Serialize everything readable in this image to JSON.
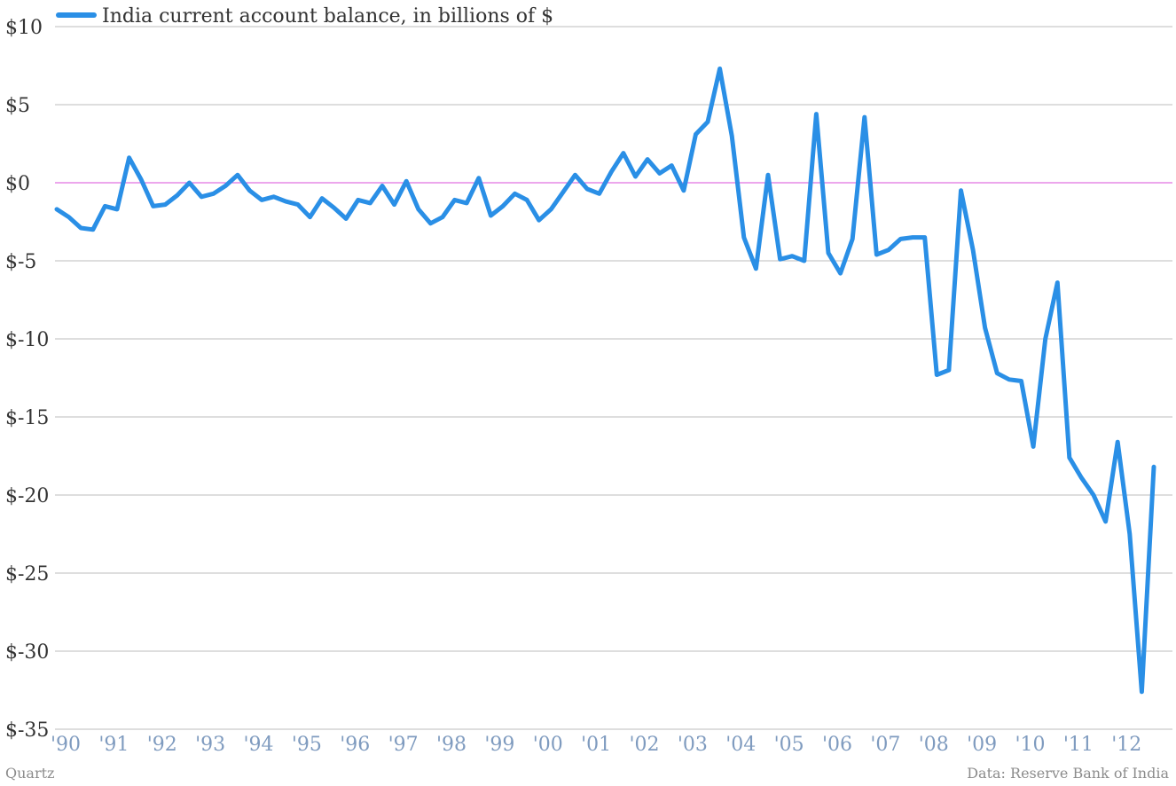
{
  "chart_data": {
    "type": "line",
    "series": [
      {
        "name": "India current account balance, in billions of $",
        "color": "#2a8fe6",
        "values": [
          -1.7,
          -2.2,
          -2.9,
          -3.0,
          -1.5,
          -1.7,
          1.6,
          0.2,
          -1.5,
          -1.4,
          -0.8,
          0.0,
          -0.9,
          -0.7,
          -0.2,
          0.5,
          -0.5,
          -1.1,
          -0.9,
          -1.2,
          -1.4,
          -2.2,
          -1.0,
          -1.6,
          -2.3,
          -1.1,
          -1.3,
          -0.2,
          -1.4,
          0.1,
          -1.7,
          -2.6,
          -2.2,
          -1.1,
          -1.3,
          0.3,
          -2.1,
          -1.5,
          -0.7,
          -1.1,
          -2.4,
          -1.7,
          -0.6,
          0.5,
          -0.4,
          -0.7,
          0.7,
          1.9,
          0.4,
          1.5,
          0.6,
          1.1,
          -0.5,
          3.1,
          3.9,
          7.3,
          3.0,
          -3.5,
          -5.5,
          0.5,
          -4.9,
          -4.7,
          -5.0,
          4.4,
          -4.5,
          -5.8,
          -3.6,
          4.2,
          -4.6,
          -4.3,
          -3.6,
          -3.5,
          -3.5,
          -12.3,
          -12.0,
          -0.5,
          -4.3,
          -9.3,
          -12.2,
          -12.6,
          -12.7,
          -16.9,
          -10.0,
          -6.4,
          -17.6,
          -18.9,
          -20.0,
          -21.7,
          -16.6,
          -22.5,
          -32.6,
          -18.2
        ]
      }
    ],
    "x_start_year": 1990,
    "x_points_per_year": 4,
    "xtick_labels": [
      "'90",
      "'91",
      "'92",
      "'93",
      "'94",
      "'95",
      "'96",
      "'97",
      "'98",
      "'99",
      "'00",
      "'01",
      "'02",
      "'03",
      "'04",
      "'05",
      "'06",
      "'07",
      "'08",
      "'09",
      "'10",
      "'11",
      "'12"
    ],
    "ytick_values": [
      10,
      5,
      0,
      -5,
      -10,
      -15,
      -20,
      -25,
      -30,
      -35
    ],
    "ytick_labels": [
      "$10",
      "$5",
      "$0",
      "$-5",
      "$-10",
      "$-15",
      "$-20",
      "$-25",
      "$-30",
      "$-35"
    ],
    "ylim": [
      -35,
      10
    ],
    "grid": true,
    "zero_line_color": "#d94fd9",
    "legend_position": "top-left"
  },
  "footer": {
    "left": "Quartz",
    "right": "Data: Reserve Bank of India"
  }
}
